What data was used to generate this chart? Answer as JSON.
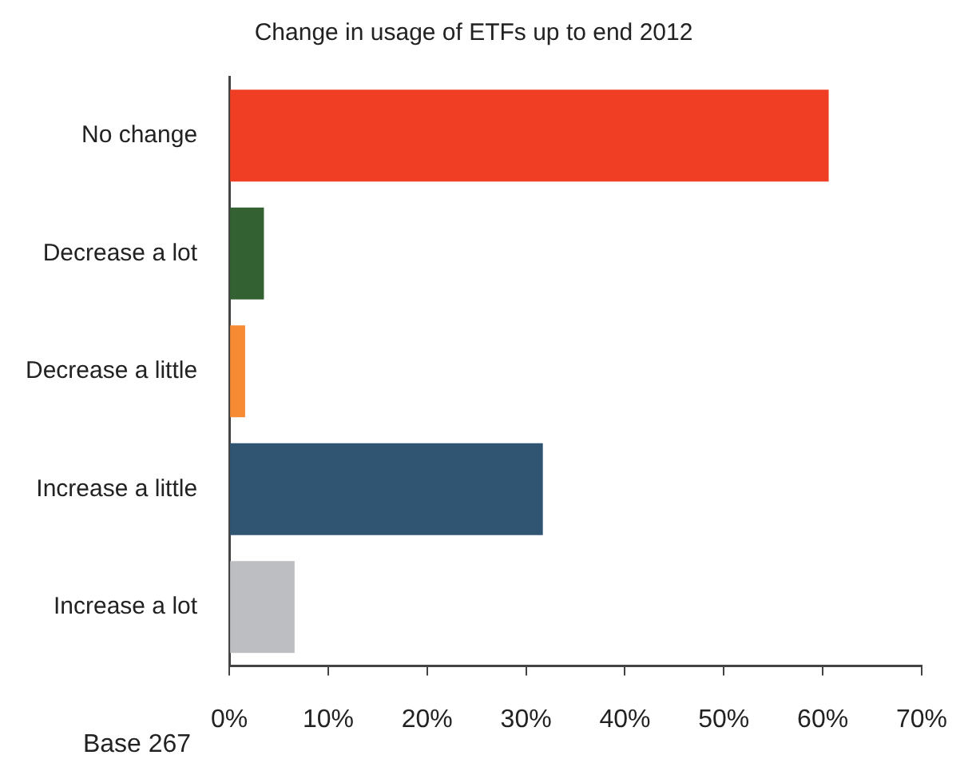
{
  "chart_data": {
    "type": "bar",
    "orientation": "horizontal",
    "title": "Change in usage of ETFs up to end 2012",
    "categories": [
      "No change",
      "Decrease a lot",
      "Decrease a little",
      "Increase a little",
      "Increase a lot"
    ],
    "values": [
      60.6,
      3.5,
      1.6,
      31.7,
      6.6
    ],
    "colors": [
      "#ef3e23",
      "#336132",
      "#f68b33",
      "#305573",
      "#bcbec1"
    ],
    "xlim": [
      0,
      70
    ],
    "xticks": [
      {
        "value": 0,
        "label": "0%"
      },
      {
        "value": 10,
        "label": "10%"
      },
      {
        "value": 20,
        "label": "20%"
      },
      {
        "value": 30,
        "label": "30%"
      },
      {
        "value": 40,
        "label": "40%"
      },
      {
        "value": 50,
        "label": "50%"
      },
      {
        "value": 60,
        "label": "60%"
      },
      {
        "value": 70,
        "label": "70%"
      }
    ],
    "annotations": [
      "Base 267"
    ],
    "grid": false,
    "legend": false
  }
}
